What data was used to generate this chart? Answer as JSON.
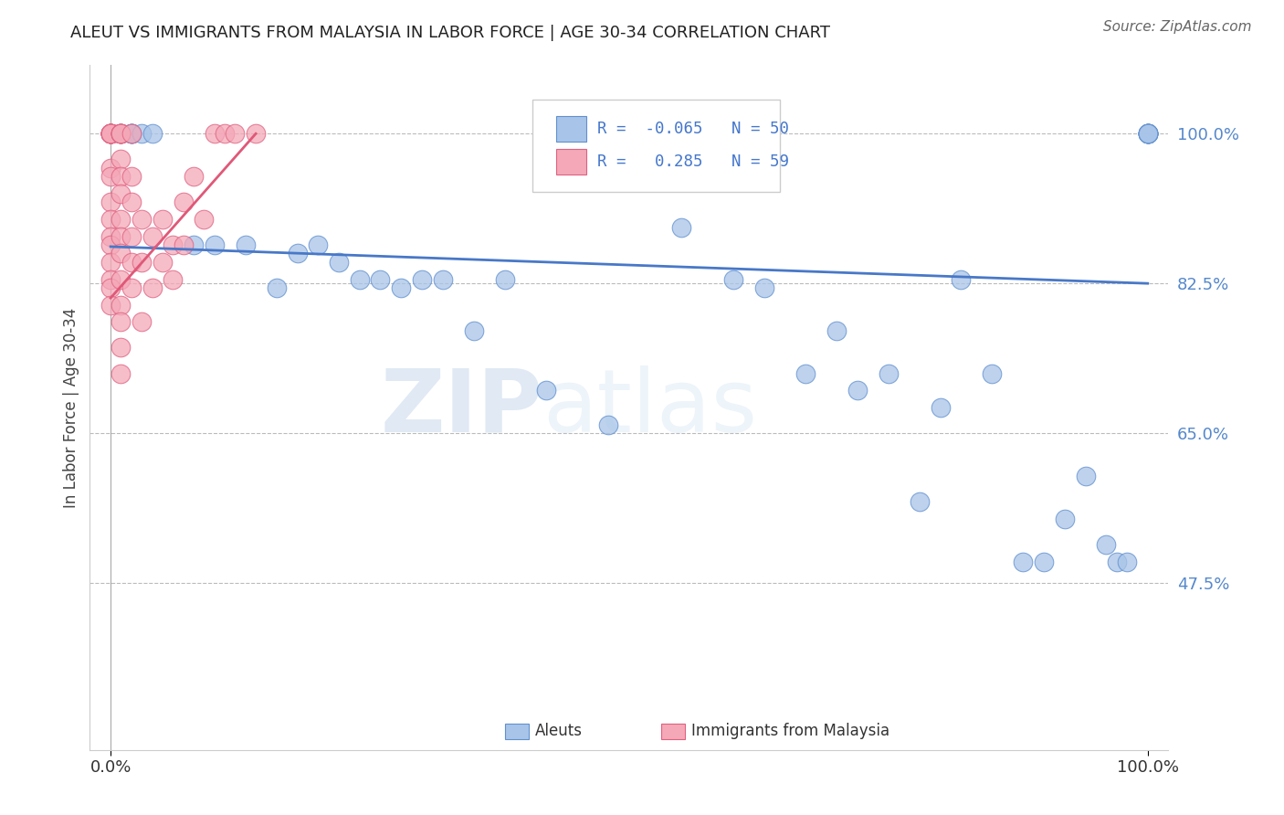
{
  "title": "ALEUT VS IMMIGRANTS FROM MALAYSIA IN LABOR FORCE | AGE 30-34 CORRELATION CHART",
  "source_text": "Source: ZipAtlas.com",
  "ylabel": "In Labor Force | Age 30-34",
  "xlim": [
    -0.02,
    1.02
  ],
  "ylim": [
    0.28,
    1.08
  ],
  "yticks": [
    0.475,
    0.65,
    0.825,
    1.0
  ],
  "ytick_labels": [
    "47.5%",
    "65.0%",
    "82.5%",
    "100.0%"
  ],
  "xtick_labels": [
    "0.0%",
    "100.0%"
  ],
  "xtick_positions": [
    0.0,
    1.0
  ],
  "blue_R": -0.065,
  "blue_N": 50,
  "pink_R": 0.285,
  "pink_N": 59,
  "blue_color": "#a8c4e8",
  "pink_color": "#f4a8b8",
  "blue_edge_color": "#6090d0",
  "pink_edge_color": "#e06080",
  "blue_line_color": "#4878c8",
  "pink_line_color": "#e05878",
  "legend_blue_label": "Aleuts",
  "legend_pink_label": "Immigrants from Malaysia",
  "watermark_text": "ZIPatlas",
  "blue_scatter_x": [
    0.01,
    0.01,
    0.02,
    0.02,
    0.02,
    0.02,
    0.03,
    0.04,
    0.08,
    0.1,
    0.13,
    0.16,
    0.18,
    0.2,
    0.22,
    0.24,
    0.26,
    0.28,
    0.3,
    0.32,
    0.35,
    0.38,
    0.42,
    0.48,
    0.55,
    0.6,
    0.63,
    0.67,
    0.7,
    0.72,
    0.75,
    0.78,
    0.8,
    0.82,
    0.85,
    0.88,
    0.9,
    0.92,
    0.94,
    0.96,
    0.97,
    0.98,
    1.0,
    1.0,
    1.0,
    1.0,
    1.0,
    1.0,
    1.0,
    1.0
  ],
  "blue_scatter_y": [
    1.0,
    1.0,
    1.0,
    1.0,
    1.0,
    1.0,
    1.0,
    1.0,
    0.87,
    0.87,
    0.87,
    0.82,
    0.86,
    0.87,
    0.85,
    0.83,
    0.83,
    0.82,
    0.83,
    0.83,
    0.77,
    0.83,
    0.7,
    0.66,
    0.89,
    0.83,
    0.82,
    0.72,
    0.77,
    0.7,
    0.72,
    0.57,
    0.68,
    0.83,
    0.72,
    0.5,
    0.5,
    0.55,
    0.6,
    0.52,
    0.5,
    0.5,
    1.0,
    1.0,
    1.0,
    1.0,
    1.0,
    1.0,
    1.0,
    1.0
  ],
  "pink_scatter_x": [
    0.0,
    0.0,
    0.0,
    0.0,
    0.0,
    0.0,
    0.0,
    0.0,
    0.0,
    0.0,
    0.0,
    0.0,
    0.0,
    0.0,
    0.0,
    0.0,
    0.0,
    0.0,
    0.0,
    0.0,
    0.01,
    0.01,
    0.01,
    0.01,
    0.01,
    0.01,
    0.01,
    0.01,
    0.01,
    0.01,
    0.01,
    0.01,
    0.01,
    0.01,
    0.01,
    0.01,
    0.02,
    0.02,
    0.02,
    0.02,
    0.02,
    0.02,
    0.03,
    0.03,
    0.03,
    0.04,
    0.04,
    0.05,
    0.05,
    0.06,
    0.06,
    0.07,
    0.07,
    0.08,
    0.09,
    0.1,
    0.11,
    0.12,
    0.14
  ],
  "pink_scatter_y": [
    1.0,
    1.0,
    1.0,
    1.0,
    1.0,
    1.0,
    1.0,
    1.0,
    1.0,
    1.0,
    0.96,
    0.95,
    0.92,
    0.9,
    0.88,
    0.87,
    0.85,
    0.83,
    0.82,
    0.8,
    1.0,
    1.0,
    1.0,
    1.0,
    1.0,
    0.97,
    0.95,
    0.93,
    0.9,
    0.88,
    0.86,
    0.83,
    0.8,
    0.78,
    0.75,
    0.72,
    1.0,
    0.95,
    0.92,
    0.88,
    0.85,
    0.82,
    0.9,
    0.85,
    0.78,
    0.88,
    0.82,
    0.9,
    0.85,
    0.87,
    0.83,
    0.92,
    0.87,
    0.95,
    0.9,
    1.0,
    1.0,
    1.0,
    1.0
  ],
  "blue_trend_x": [
    0.0,
    1.0
  ],
  "blue_trend_y": [
    0.868,
    0.825
  ],
  "pink_trend_x": [
    0.0,
    0.14
  ],
  "pink_trend_y": [
    0.808,
    1.0
  ]
}
